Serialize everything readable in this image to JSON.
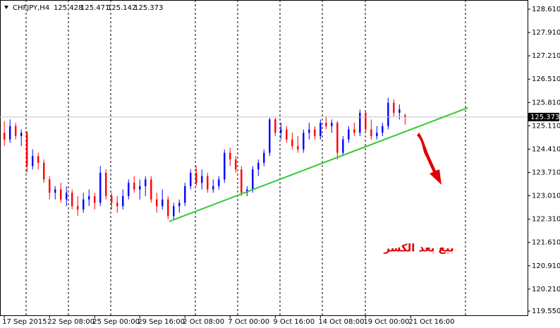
{
  "chart_data": {
    "type": "candlestick",
    "title": "CHFJPY,H4",
    "up_color": "#0000ff",
    "down_color": "#ff0000",
    "open": [
      124.9,
      124.7,
      125.1,
      124.8,
      124.9,
      123.9,
      124.2,
      124.0,
      123.5,
      123.1,
      123.2,
      122.9,
      123.1,
      122.7,
      122.6,
      122.9,
      123.0,
      122.8,
      123.7,
      123.0,
      122.8,
      122.7,
      123.0,
      123.4,
      123.2,
      123.3,
      123.5,
      122.9,
      122.7,
      122.9,
      122.4,
      122.7,
      122.8,
      123.3,
      123.7,
      123.4,
      123.6,
      123.2,
      123.3,
      123.5,
      124.3,
      124.1,
      123.8,
      123.1,
      123.2,
      123.8,
      124.0,
      124.3,
      125.3,
      124.9,
      125.0,
      124.7,
      124.5,
      124.4,
      124.9,
      125.0,
      124.8,
      125.2,
      125.1,
      125.2,
      124.3,
      124.7,
      125.0,
      124.9,
      125.5,
      125.0,
      124.8,
      124.9,
      125.1,
      125.8,
      125.5,
      125.428
    ],
    "high": [
      125.25,
      125.3,
      125.2,
      125.0,
      124.95,
      124.4,
      124.3,
      124.1,
      123.6,
      123.3,
      123.4,
      123.3,
      123.2,
      123.0,
      123.1,
      123.2,
      123.1,
      123.9,
      123.8,
      123.1,
      123.0,
      123.2,
      123.5,
      123.6,
      123.5,
      123.6,
      123.6,
      123.1,
      123.2,
      123.0,
      122.8,
      122.9,
      123.4,
      123.8,
      123.9,
      123.8,
      123.7,
      123.5,
      123.6,
      124.4,
      124.45,
      124.2,
      123.9,
      123.3,
      123.9,
      124.1,
      124.4,
      125.35,
      125.35,
      125.2,
      125.1,
      124.9,
      124.8,
      125.0,
      125.2,
      125.1,
      125.3,
      125.4,
      125.3,
      125.25,
      124.8,
      125.1,
      125.2,
      125.6,
      125.55,
      125.3,
      125.1,
      125.2,
      125.95,
      125.9,
      125.75,
      125.471
    ],
    "low": [
      124.5,
      124.6,
      124.7,
      124.5,
      123.7,
      123.8,
      123.8,
      123.4,
      122.9,
      122.9,
      122.8,
      122.7,
      122.6,
      122.4,
      122.5,
      122.7,
      122.6,
      122.7,
      122.9,
      122.6,
      122.5,
      122.6,
      122.9,
      123.1,
      122.9,
      123.0,
      122.8,
      122.5,
      122.6,
      122.3,
      122.3,
      122.5,
      122.7,
      123.2,
      123.3,
      123.2,
      123.1,
      123.1,
      123.2,
      123.4,
      123.9,
      123.7,
      123.0,
      123.0,
      123.1,
      123.6,
      123.9,
      124.2,
      124.8,
      124.7,
      124.6,
      124.4,
      124.3,
      124.3,
      124.7,
      124.7,
      124.7,
      125.0,
      124.9,
      124.1,
      124.2,
      124.6,
      124.8,
      124.8,
      124.9,
      124.7,
      124.7,
      124.8,
      125.0,
      125.4,
      125.3,
      125.142
    ],
    "close": [
      124.7,
      125.1,
      124.8,
      124.9,
      123.9,
      124.2,
      124.0,
      123.5,
      123.1,
      123.2,
      122.9,
      123.1,
      122.7,
      122.6,
      122.9,
      123.0,
      122.8,
      123.7,
      123.0,
      122.8,
      122.7,
      123.0,
      123.4,
      123.2,
      123.3,
      123.5,
      122.9,
      122.7,
      122.9,
      122.4,
      122.7,
      122.8,
      123.3,
      123.7,
      123.4,
      123.6,
      123.2,
      123.3,
      123.5,
      124.3,
      124.1,
      123.8,
      123.1,
      123.2,
      123.8,
      124.0,
      124.3,
      125.3,
      124.9,
      125.0,
      124.7,
      124.5,
      124.4,
      124.9,
      125.0,
      124.8,
      125.2,
      125.1,
      125.2,
      124.3,
      124.7,
      125.0,
      124.9,
      125.5,
      125.0,
      124.8,
      124.9,
      125.1,
      125.8,
      125.5,
      125.6,
      125.373
    ],
    "xlim": [
      -0.4,
      92.7
    ],
    "xticks": [
      {
        "value": 0,
        "label": "17 Sep 2015"
      },
      {
        "value": 8,
        "label": "22 Sep 08:00"
      },
      {
        "value": 16,
        "label": "25 Sep 00:00"
      },
      {
        "value": 24,
        "label": "29 Sep 16:00"
      },
      {
        "value": 32,
        "label": "2 Oct 08:00"
      },
      {
        "value": 40,
        "label": "7 Oct 00:00"
      },
      {
        "value": 48,
        "label": "9 Oct 16:00"
      },
      {
        "value": 56,
        "label": "14 Oct 08:00"
      },
      {
        "value": 64,
        "label": "19 Oct 00:00"
      },
      {
        "value": 72,
        "label": "21 Oct 16:00"
      }
    ],
    "ylim": [
      119.423,
      128.885
    ],
    "yticks": [
      {
        "value": 128.61,
        "label": "128.610"
      },
      {
        "value": 127.91,
        "label": "127.910"
      },
      {
        "value": 127.21,
        "label": "127.210"
      },
      {
        "value": 126.51,
        "label": "126.510"
      },
      {
        "value": 125.81,
        "label": "125.810"
      },
      {
        "value": 125.11,
        "label": "125.110"
      },
      {
        "value": 124.41,
        "label": "124.410"
      },
      {
        "value": 123.71,
        "label": "123.710"
      },
      {
        "value": 123.01,
        "label": "123.010"
      },
      {
        "value": 122.31,
        "label": "122.310"
      },
      {
        "value": 121.61,
        "label": "121.610"
      },
      {
        "value": 120.91,
        "label": "120.910"
      },
      {
        "value": 120.21,
        "label": "120.210"
      },
      {
        "value": 119.55,
        "label": "119.550"
      }
    ],
    "trendline": {
      "x": [
        29.2,
        82.1
      ],
      "y": [
        122.24,
        125.65
      ],
      "color": "#33cc33"
    },
    "annotation": "بيع بعد الكسر"
  }
}
